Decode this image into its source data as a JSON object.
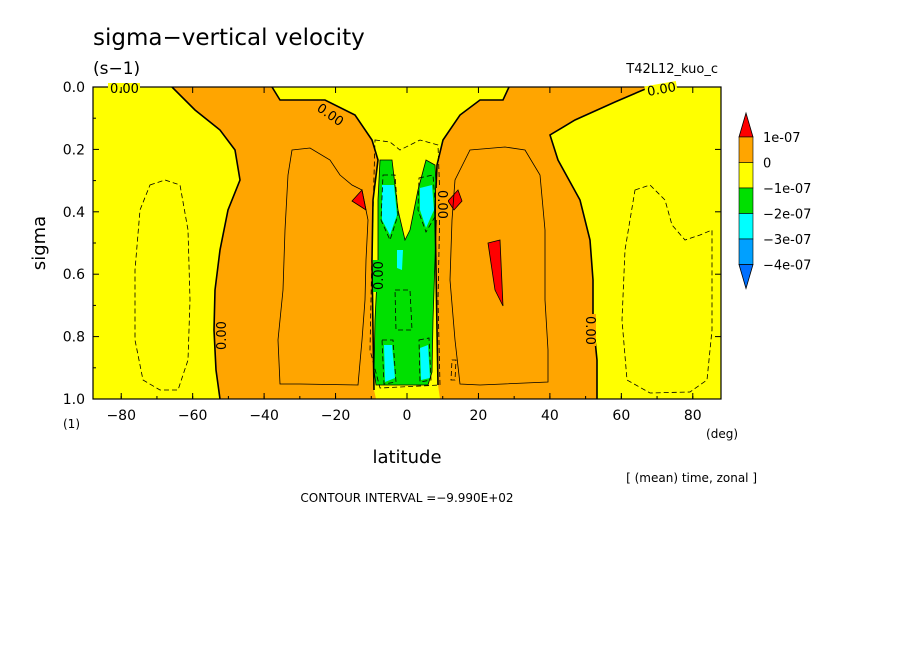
{
  "chart_data": {
    "type": "heatmap",
    "title": "sigma−vertical velocity",
    "units": "(s−1)",
    "run_id": "T42L12_kuo_c",
    "xlabel": "latitude",
    "ylabel": "sigma",
    "x_unit": "(deg)",
    "y_unit": "(1)",
    "xlim": [
      -87.9,
      87.9
    ],
    "ylim": [
      0.0,
      1.0
    ],
    "y_reversed": true,
    "xticks": [
      -80,
      -60,
      -40,
      -20,
      0,
      20,
      40,
      60,
      80
    ],
    "yticks": [
      0.0,
      0.2,
      0.4,
      0.6,
      0.8,
      1.0
    ],
    "contour_labels": [
      {
        "text": "0.00",
        "lat": -80,
        "sigma": 0.0
      },
      {
        "text": "0.00",
        "lat": -23,
        "sigma": 0.12
      },
      {
        "text": "0.00",
        "lat": -53,
        "sigma": 0.78
      },
      {
        "text": "0.00",
        "lat": -9,
        "sigma": 0.57
      },
      {
        "text": "0.00",
        "lat": 11,
        "sigma": 0.38
      },
      {
        "text": "0.00",
        "lat": 55,
        "sigma": 0.78
      },
      {
        "text": "0.00",
        "lat": 74,
        "sigma": 0.0
      }
    ],
    "colorbar": {
      "levels": [
        "1e-07",
        "0",
        "−1e-07",
        "−2e-07",
        "−3e-07",
        "−4e-07"
      ],
      "colors": [
        "#ff0000",
        "#ffa500",
        "#ffff00",
        "#00e000",
        "#00ffff",
        "#00a0ff",
        "#0070ff"
      ]
    },
    "region_colors": {
      "background": "#ffff00",
      "positive": "#ffa500",
      "strong_positive": "#ff0000",
      "negative": "#00e000",
      "strong_negative": "#00ffff"
    },
    "footer_note": "[ (mean) time, zonal ]",
    "contour_interval": "CONTOUR INTERVAL =−9.990E+02"
  }
}
